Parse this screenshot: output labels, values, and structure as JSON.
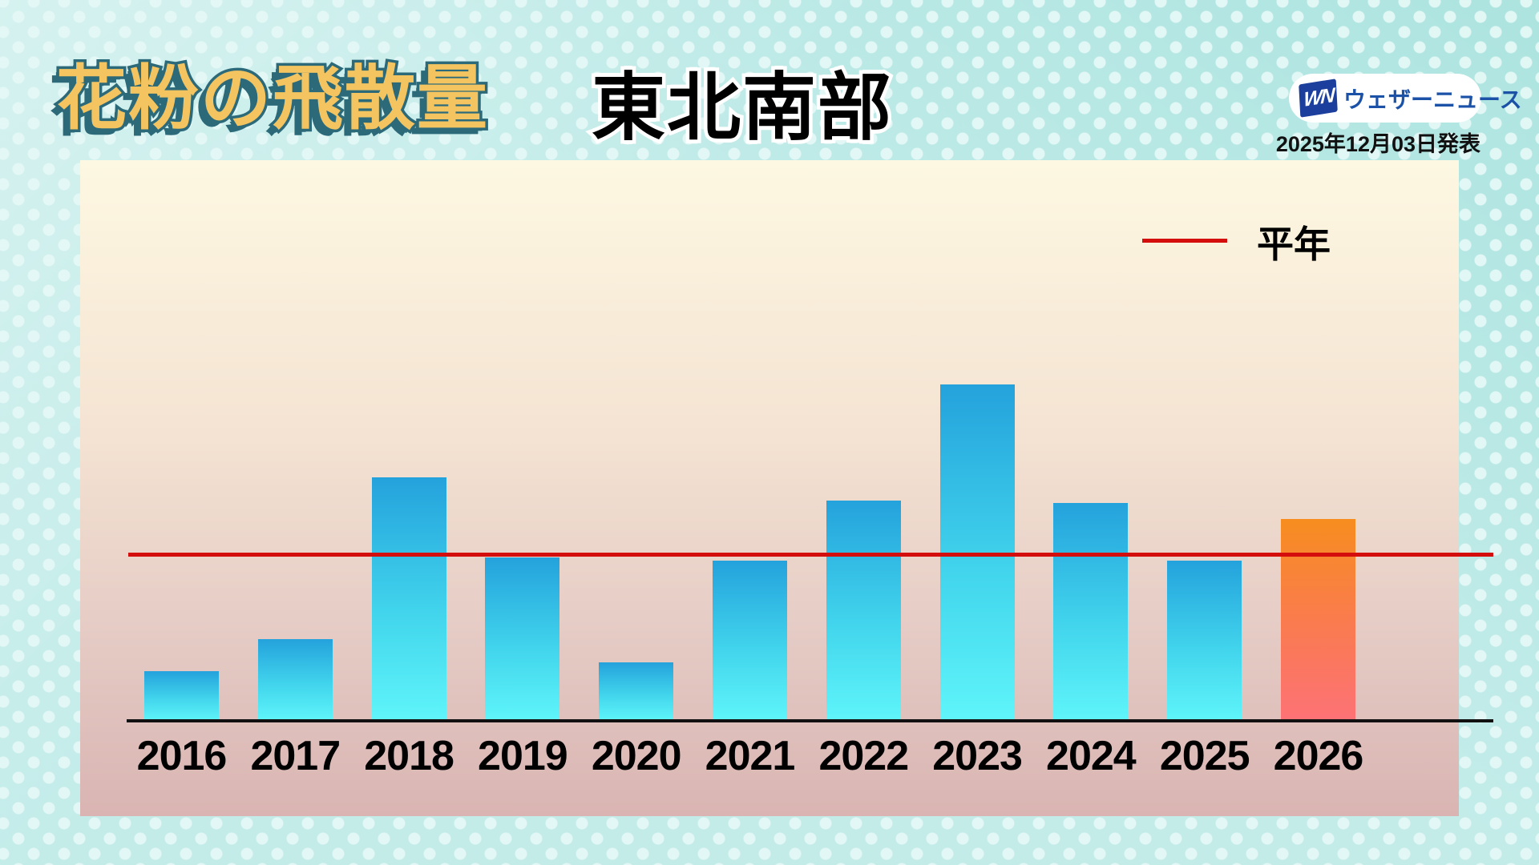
{
  "header": {
    "title": "花粉の飛散量",
    "region": "東北南部",
    "publish_date": "2025年12月03日発表"
  },
  "logo": {
    "mark": "WN",
    "name": "ウェザーニュース"
  },
  "legend": {
    "label": "平年"
  },
  "chart_data": {
    "type": "bar",
    "title": "花粉の飛散量 東北南部",
    "categories": [
      "2016",
      "2017",
      "2018",
      "2019",
      "2020",
      "2021",
      "2022",
      "2023",
      "2024",
      "2025",
      "2026"
    ],
    "values_normal100": [
      30,
      49,
      146,
      98,
      35,
      96,
      132,
      202,
      131,
      96,
      121
    ],
    "unit": "平年(normal)=100 relative index, no numeric axis shown",
    "normal_line": {
      "label": "平年",
      "value": 100,
      "color": "#d40d0d"
    },
    "forecast_year": "2026",
    "bar_colors": {
      "observed_top": "#24a2dc",
      "observed_bottom": "#5ff5fa",
      "forecast_top": "#f78d1f",
      "forecast_bottom": "#fd7276"
    },
    "xlabel": "",
    "ylabel": "",
    "grid": false,
    "legend_position": "top-right"
  }
}
